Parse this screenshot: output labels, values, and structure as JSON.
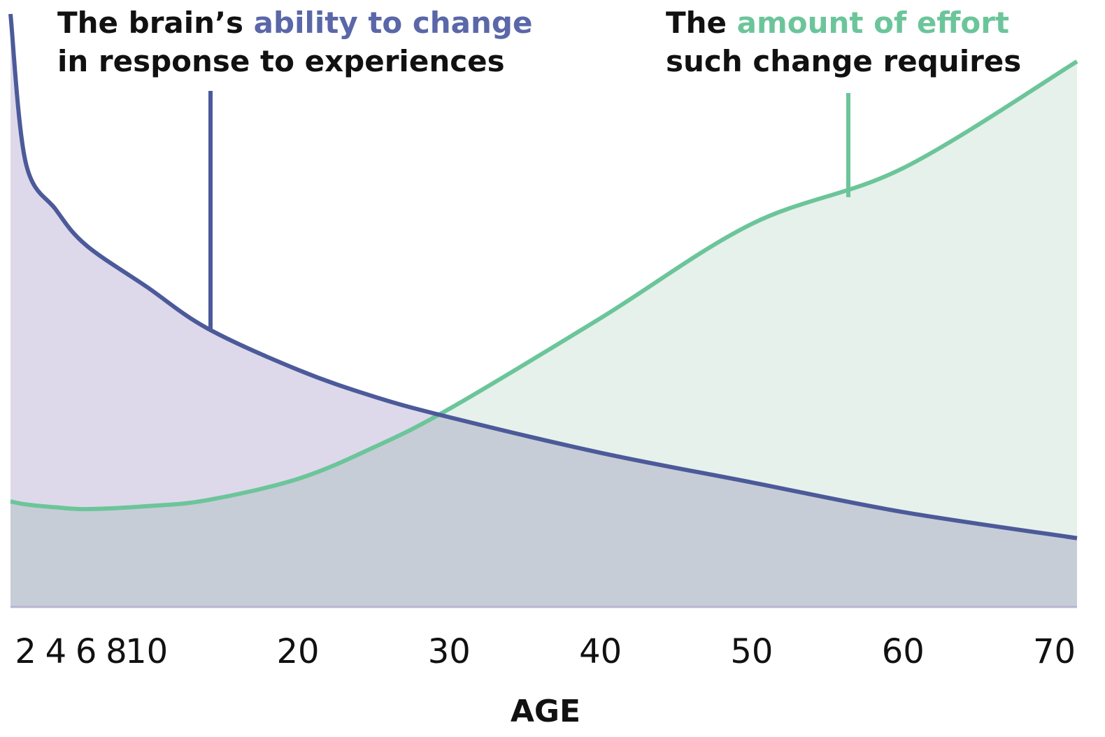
{
  "chart_data": {
    "type": "area",
    "x": [
      1,
      2,
      4,
      6,
      10,
      14,
      20,
      25,
      30,
      40,
      50,
      60,
      71.5
    ],
    "series": [
      {
        "color": "#6cc59a",
        "fill": "#e5f1ea",
        "values": [
          17.8,
          17.3,
          16.8,
          16.5,
          17,
          18,
          21.6,
          26.9,
          33.4,
          48.7,
          64.6,
          74,
          92
        ]
      },
      {
        "color": "#4c5a9a",
        "fill": "#ddd9ea",
        "values": [
          100,
          75,
          67,
          61,
          54,
          47,
          40,
          35.5,
          32,
          26,
          21,
          16,
          11.6
        ]
      }
    ],
    "annotations": [
      {
        "lines": [
          [
            {
              "text": "The brain’s ",
              "color": "#111111"
            },
            {
              "text": "ability to change",
              "color": "#5a67a8"
            }
          ],
          [
            {
              "text": "in response to experiences",
              "color": "#111111"
            }
          ]
        ]
      },
      {
        "lines": [
          [
            {
              "text": "The ",
              "color": "#111111"
            },
            {
              "text": "amount of effort",
              "color": "#6cc59a"
            }
          ],
          [
            {
              "text": "such change requires",
              "color": "#111111"
            }
          ]
        ]
      }
    ],
    "xlabel": "AGE",
    "xlim": [
      1,
      71.5
    ],
    "ylim": [
      0,
      100
    ],
    "xticks": [
      2,
      4,
      6,
      8,
      10,
      20,
      30,
      40,
      50,
      60,
      70
    ]
  }
}
